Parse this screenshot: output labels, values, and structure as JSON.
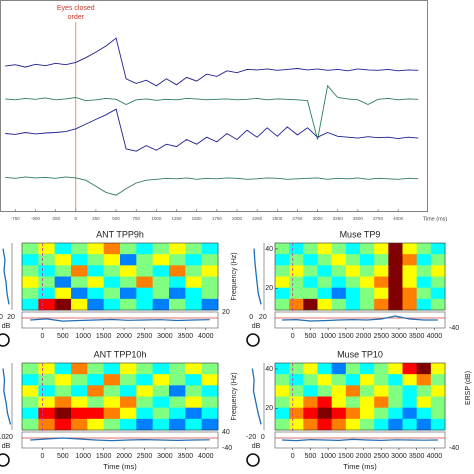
{
  "chart_data": [
    {
      "type": "line",
      "annotation": [
        "Eyes closed",
        "order"
      ],
      "annotation_x": 0,
      "xlabel": "Time (ms)",
      "x": [
        -875,
        -750,
        -625,
        -500,
        -375,
        -250,
        -125,
        0,
        125,
        250,
        375,
        500,
        625,
        750,
        875,
        1000,
        1125,
        1250,
        1375,
        1500,
        1625,
        1750,
        1875,
        2000,
        2125,
        2250,
        2375,
        2500,
        2625,
        2750,
        2875,
        3000,
        3125,
        3250,
        3375,
        3500,
        3625,
        3750,
        3875,
        4000,
        4125,
        4250
      ],
      "xlim": [
        -940,
        4370
      ],
      "ylim": [
        0,
        4
      ],
      "xticks": [
        -750,
        -500,
        -250,
        0,
        250,
        500,
        750,
        1000,
        1250,
        1500,
        1750,
        2000,
        2250,
        2500,
        2750,
        3000,
        3250,
        3500,
        3750,
        4000
      ],
      "series": [
        {
          "color": "#1f1f8f",
          "values": [
            3.12,
            3.15,
            3.1,
            3.16,
            3.13,
            3.18,
            3.15,
            3.2,
            3.3,
            3.42,
            3.55,
            3.72,
            2.85,
            2.75,
            2.82,
            2.7,
            2.85,
            2.72,
            2.88,
            2.8,
            2.95,
            2.9,
            3.02,
            2.98,
            3.05,
            3.04,
            3.06,
            3.03,
            3.05,
            3.07,
            3.04,
            3.06,
            3.03,
            3.05,
            3.02,
            3.06,
            3.04,
            3.03,
            3.05,
            3.02,
            3.04,
            3.03
          ]
        },
        {
          "color": "#2e7d5b",
          "values": [
            2.42,
            2.4,
            2.43,
            2.41,
            2.44,
            2.4,
            2.42,
            2.45,
            2.38,
            2.4,
            2.43,
            2.41,
            2.3,
            2.4,
            2.42,
            2.39,
            2.41,
            2.4,
            2.43,
            2.42,
            2.4,
            2.41,
            2.42,
            2.4,
            2.41,
            2.43,
            2.4,
            2.42,
            2.41,
            2.4,
            2.38,
            1.55,
            2.7,
            2.45,
            2.42,
            2.4,
            2.3,
            2.41,
            2.43,
            2.4,
            2.42,
            2.41
          ]
        },
        {
          "color": "#1f1f8f",
          "values": [
            1.68,
            1.66,
            1.7,
            1.67,
            1.69,
            1.7,
            1.72,
            1.78,
            1.88,
            1.98,
            2.08,
            2.2,
            1.35,
            1.3,
            1.42,
            1.32,
            1.45,
            1.4,
            1.55,
            1.45,
            1.6,
            1.5,
            1.68,
            1.55,
            1.75,
            1.6,
            1.8,
            1.62,
            1.82,
            1.65,
            1.8,
            1.6,
            1.7,
            1.62,
            1.6,
            1.58,
            1.61,
            1.59,
            1.6,
            1.57,
            1.6,
            1.58
          ]
        },
        {
          "color": "#2e7d5b",
          "values": [
            0.74,
            0.72,
            0.75,
            0.73,
            0.74,
            0.72,
            0.75,
            0.73,
            0.68,
            0.55,
            0.42,
            0.36,
            0.5,
            0.62,
            0.68,
            0.7,
            0.72,
            0.71,
            0.73,
            0.7,
            0.72,
            0.71,
            0.73,
            0.72,
            0.7,
            0.71,
            0.73,
            0.72,
            0.7,
            0.71,
            0.72,
            0.73,
            0.7,
            0.72,
            0.71,
            0.73,
            0.7,
            0.72,
            0.71,
            0.7,
            0.72,
            0.71
          ]
        }
      ]
    },
    {
      "type": "heatmap",
      "xlabel": "Time (ms)",
      "ylabel": "Frequency (Hz)",
      "colorbar_label": "ERSP (dB)",
      "colormap": "jet",
      "clim": [
        -4,
        4
      ],
      "xlim": [
        -500,
        4300
      ],
      "ylim": [
        9,
        43
      ],
      "xticks": [
        0,
        500,
        1000,
        1500,
        2000,
        2500,
        3000,
        3500,
        4000
      ],
      "yticks": [
        20,
        40
      ],
      "envelope_color": "#1f6fb4",
      "spectrum_color": "#1f6fb4",
      "panels": [
        {
          "title": "ANT TPP9h",
          "spectrum_unit": "dB",
          "spectrum_xlim": [
            -2,
            22
          ],
          "spectrum_ticks": [
            0,
            20
          ],
          "spectrum": [
            4,
            8,
            6,
            10,
            12,
            16
          ],
          "envelope_ylim": [
            -40,
            20
          ],
          "envelope_ticks": [
            20
          ],
          "envelope": [
            -10,
            -6,
            -14,
            -12,
            -10,
            -8,
            -11,
            -10,
            -9,
            -12,
            -10,
            -9
          ],
          "values": [
            [
              0,
              1,
              -1,
              0,
              1,
              2,
              0,
              -1,
              0,
              1,
              0,
              -1
            ],
            [
              -1,
              0,
              1,
              -1,
              0,
              1,
              -2,
              0,
              1,
              0,
              -1,
              0
            ],
            [
              0,
              -1,
              0,
              2,
              -1,
              0,
              1,
              0,
              -1,
              2,
              0,
              1
            ],
            [
              1,
              0,
              -2,
              0,
              1,
              -1,
              0,
              2,
              0,
              -1,
              1,
              0
            ],
            [
              0,
              -1,
              1,
              -2,
              -1,
              0,
              -2,
              -1,
              0,
              -2,
              -1,
              0
            ],
            [
              -1,
              3,
              4,
              1,
              -2,
              -1,
              0,
              -1,
              -2,
              0,
              -1,
              -2
            ]
          ]
        },
        {
          "title": "Muse TP9",
          "spectrum_unit": "dB",
          "spectrum_xlim": [
            -2,
            22
          ],
          "spectrum_ticks": [
            0,
            20
          ],
          "spectrum": [
            5,
            6,
            8,
            10,
            12,
            17
          ],
          "envelope_ylim": [
            -40,
            40
          ],
          "envelope_ticks": [
            -40
          ],
          "envelope": [
            0,
            2,
            -5,
            -3,
            0,
            2,
            0,
            5,
            20,
            5,
            0,
            0
          ],
          "values": [
            [
              0,
              -1,
              0,
              1,
              0,
              -1,
              0,
              1,
              4,
              1,
              0,
              -1
            ],
            [
              -1,
              0,
              -1,
              0,
              1,
              0,
              -1,
              0,
              4,
              2,
              -1,
              0
            ],
            [
              0,
              1,
              0,
              -1,
              0,
              1,
              0,
              1,
              4,
              1,
              0,
              1
            ],
            [
              1,
              0,
              -1,
              0,
              -1,
              0,
              1,
              2,
              4,
              1,
              -1,
              0
            ],
            [
              -1,
              0,
              0,
              -1,
              -2,
              -1,
              0,
              1,
              4,
              2,
              0,
              -1
            ],
            [
              0,
              2,
              4,
              1,
              0,
              -1,
              0,
              2,
              4,
              2,
              -1,
              0
            ]
          ]
        },
        {
          "title": "ANT TPP10h",
          "spectrum_unit": "dB",
          "spectrum_xlim": [
            8,
            24
          ],
          "spectrum_ticks": [
            10,
            20
          ],
          "spectrum": [
            12,
            14,
            13,
            16,
            18,
            22
          ],
          "envelope_ylim": [
            -40,
            40
          ],
          "envelope_ticks": [
            40,
            -40
          ],
          "envelope": [
            0,
            5,
            10,
            5,
            0,
            -3,
            0,
            2,
            0,
            -2,
            0,
            1
          ],
          "values": [
            [
              0,
              1,
              -1,
              2,
              0,
              -1,
              1,
              0,
              -1,
              0,
              1,
              0
            ],
            [
              -1,
              0,
              1,
              0,
              -1,
              2,
              0,
              -1,
              1,
              0,
              -1,
              1
            ],
            [
              1,
              -1,
              0,
              -1,
              2,
              0,
              -1,
              1,
              0,
              -2,
              0,
              -1
            ],
            [
              0,
              1,
              2,
              1,
              0,
              1,
              2,
              0,
              -1,
              0,
              1,
              0
            ],
            [
              -1,
              3,
              4,
              3,
              3,
              2,
              1,
              -1,
              0,
              -1,
              -2,
              -1
            ],
            [
              0,
              2,
              3,
              2,
              1,
              0,
              -1,
              -2,
              -1,
              -2,
              -1,
              -2
            ]
          ]
        },
        {
          "title": "Muse TP10",
          "spectrum_unit": "dB",
          "spectrum_xlim": [
            -22,
            2
          ],
          "spectrum_ticks": [
            -20,
            0
          ],
          "spectrum": [
            -18,
            -15,
            -16,
            -12,
            -8,
            -3
          ],
          "envelope_ylim": [
            -40,
            40
          ],
          "envelope_ticks": [
            -40
          ],
          "envelope": [
            0,
            -3,
            2,
            0,
            -2,
            3,
            0,
            -2,
            1,
            0,
            -1,
            0
          ],
          "values": [
            [
              -1,
              0,
              1,
              -1,
              -2,
              0,
              -1,
              0,
              1,
              3,
              4,
              1
            ],
            [
              0,
              -1,
              0,
              1,
              0,
              -1,
              1,
              0,
              -1,
              1,
              2,
              0
            ],
            [
              1,
              0,
              -1,
              0,
              1,
              2,
              0,
              1,
              0,
              -1,
              0,
              1
            ],
            [
              0,
              1,
              2,
              3,
              1,
              0,
              1,
              2,
              0,
              -1,
              1,
              0
            ],
            [
              -1,
              2,
              3,
              4,
              3,
              2,
              1,
              0,
              -1,
              -2,
              -1,
              0
            ],
            [
              0,
              1,
              2,
              3,
              2,
              1,
              0,
              -1,
              -2,
              -1,
              -2,
              -1
            ]
          ]
        }
      ]
    }
  ]
}
